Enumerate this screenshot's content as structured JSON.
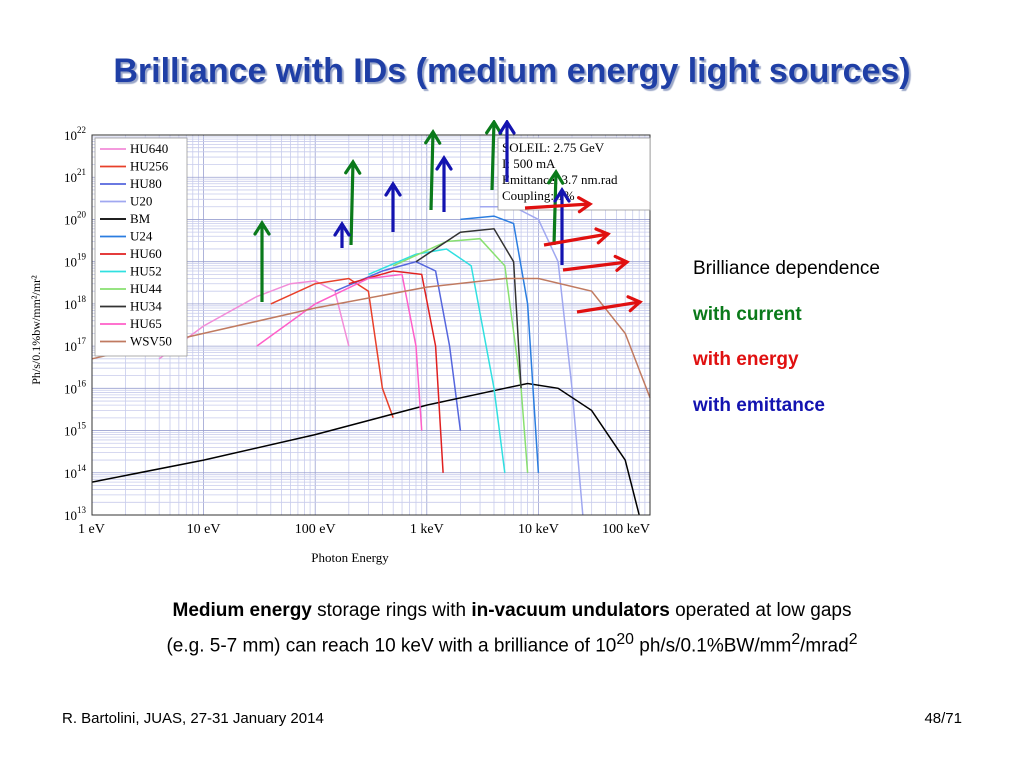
{
  "slide": {
    "title": "Brilliance with IDs (medium energy light sources)",
    "footer_left": "R. Bartolini, JUAS, 27-31 January 2014",
    "footer_right": "48/71"
  },
  "side_notes": {
    "heading": "Brilliance dependence",
    "current": "with current",
    "energy": "with energy",
    "emittance": "with emittance",
    "colors": {
      "current": "#0a7a1a",
      "energy": "#e01010",
      "emittance": "#1313b0"
    }
  },
  "caption": {
    "p1_bold": "Medium energy",
    "p1_a": " storage rings with ",
    "p1_bold2": "in-vacuum undulators",
    "p1_b": " operated at low gaps",
    "p2_a": "(e.g. 5-7 mm) can reach 10 keV with a brilliance of 10",
    "p2_sup1": "20",
    "p2_b": " ph/s/0.1%BW/mm",
    "p2_sup2": "2",
    "p2_c": "/mrad",
    "p2_sup3": "2"
  },
  "chart_data": {
    "type": "line",
    "log_x": true,
    "log_y": true,
    "xlabel": "Photon Energy",
    "ylabel": "Ph/s/0.1%bw/mm²/mr²",
    "xlim": [
      1,
      100000
    ],
    "ylim": [
      10000000000000.0,
      1e+22
    ],
    "x_ticks": [
      {
        "v": 1,
        "label": "1  eV"
      },
      {
        "v": 10,
        "label": "10  eV"
      },
      {
        "v": 100,
        "label": "100  eV"
      },
      {
        "v": 1000,
        "label": "1 keV"
      },
      {
        "v": 10000,
        "label": "10 keV"
      },
      {
        "v": 100000,
        "label": "100 keV"
      }
    ],
    "y_ticks": [
      {
        "exp": 13,
        "base": "10",
        "sup": "13"
      },
      {
        "exp": 14,
        "base": "10",
        "sup": "14"
      },
      {
        "exp": 15,
        "base": "10",
        "sup": "15"
      },
      {
        "exp": 16,
        "base": "10",
        "sup": "16"
      },
      {
        "exp": 17,
        "base": "10",
        "sup": "17"
      },
      {
        "exp": 18,
        "base": "10",
        "sup": "18"
      },
      {
        "exp": 19,
        "base": "10",
        "sup": "19"
      },
      {
        "exp": 20,
        "base": "10",
        "sup": "20"
      },
      {
        "exp": 21,
        "base": "10",
        "sup": "21"
      },
      {
        "exp": 22,
        "base": "10",
        "sup": "22"
      }
    ],
    "grid": true,
    "legend_position": "top-left",
    "info_box": [
      "SOLEIL: 2.75 GeV",
      "I: 500 mA",
      "Emittance: 3.7 nm.rad",
      "Coupling: 1%"
    ],
    "series": [
      {
        "name": "HU640",
        "color": "#f28cd8",
        "points": [
          [
            4,
            5e+16
          ],
          [
            10,
            3e+17
          ],
          [
            30,
            1.5e+18
          ],
          [
            60,
            3e+18
          ],
          [
            100,
            3.5e+18
          ],
          [
            150,
            2e+18
          ],
          [
            200,
            1e+17
          ]
        ]
      },
      {
        "name": "HU256",
        "color": "#e8402a",
        "points": [
          [
            40,
            1e+18
          ],
          [
            100,
            3e+18
          ],
          [
            200,
            4e+18
          ],
          [
            300,
            2e+18
          ],
          [
            400,
            1e+16
          ],
          [
            500,
            2000000000000000.0
          ]
        ]
      },
      {
        "name": "HU80",
        "color": "#5566dd",
        "points": [
          [
            150,
            2e+18
          ],
          [
            400,
            6e+18
          ],
          [
            800,
            1e+19
          ],
          [
            1200,
            6e+18
          ],
          [
            1600,
            1e+17
          ],
          [
            2000,
            1000000000000000.0
          ]
        ]
      },
      {
        "name": "U20",
        "color": "#a0a8f0",
        "points": [
          [
            3000,
            2e+20
          ],
          [
            6000,
            2e+20
          ],
          [
            10000,
            1e+20
          ],
          [
            15000,
            1e+19
          ],
          [
            20000,
            1e+16
          ],
          [
            25000,
            10000000000000.0
          ]
        ]
      },
      {
        "name": "BM",
        "color": "#000000",
        "points": [
          [
            1,
            60000000000000.0
          ],
          [
            10,
            200000000000000.0
          ],
          [
            100,
            800000000000000.0
          ],
          [
            1000,
            4000000000000000.0
          ],
          [
            5000,
            1e+16
          ],
          [
            8000,
            1.3e+16
          ],
          [
            15000,
            1e+16
          ],
          [
            30000,
            3000000000000000.0
          ],
          [
            60000,
            200000000000000.0
          ],
          [
            80000,
            10000000000000.0
          ]
        ]
      },
      {
        "name": "U24",
        "color": "#2b7de0",
        "points": [
          [
            2000,
            1e+20
          ],
          [
            4000,
            1.2e+20
          ],
          [
            6000,
            8e+19
          ],
          [
            8000,
            1e+18
          ],
          [
            10000,
            100000000000000.0
          ]
        ]
      },
      {
        "name": "HU60",
        "color": "#e02020",
        "points": [
          [
            200,
            3e+18
          ],
          [
            500,
            6e+18
          ],
          [
            900,
            5e+18
          ],
          [
            1200,
            1e+17
          ],
          [
            1400,
            100000000000000.0
          ]
        ]
      },
      {
        "name": "HU52",
        "color": "#30e0e0",
        "points": [
          [
            300,
            5e+18
          ],
          [
            800,
            1.5e+19
          ],
          [
            1500,
            2e+19
          ],
          [
            2500,
            8e+18
          ],
          [
            4000,
            1e+16
          ],
          [
            5000,
            100000000000000.0
          ]
        ]
      },
      {
        "name": "HU44",
        "color": "#88e070",
        "points": [
          [
            500,
            8e+18
          ],
          [
            1500,
            3e+19
          ],
          [
            3000,
            3.5e+19
          ],
          [
            5000,
            8e+18
          ],
          [
            7000,
            1e+16
          ],
          [
            8000,
            100000000000000.0
          ]
        ]
      },
      {
        "name": "HU34",
        "color": "#333333",
        "points": [
          [
            800,
            1e+19
          ],
          [
            2000,
            5e+19
          ],
          [
            4000,
            6e+19
          ],
          [
            6000,
            1e+19
          ],
          [
            7000,
            1e+16
          ]
        ]
      },
      {
        "name": "HU65",
        "color": "#ff5fc8",
        "points": [
          [
            30,
            1e+17
          ],
          [
            100,
            1e+18
          ],
          [
            300,
            4e+18
          ],
          [
            600,
            5e+18
          ],
          [
            800,
            1e+17
          ],
          [
            900,
            1000000000000000.0
          ]
        ]
      },
      {
        "name": "WSV50",
        "color": "#c07a60",
        "points": [
          [
            1,
            5e+16
          ],
          [
            10,
            2e+17
          ],
          [
            100,
            8e+17
          ],
          [
            1000,
            2.5e+18
          ],
          [
            5000,
            4e+18
          ],
          [
            10000,
            4e+18
          ],
          [
            30000,
            2e+18
          ],
          [
            60000,
            2e+17
          ],
          [
            100000,
            6000000000000000.0
          ]
        ]
      }
    ]
  }
}
